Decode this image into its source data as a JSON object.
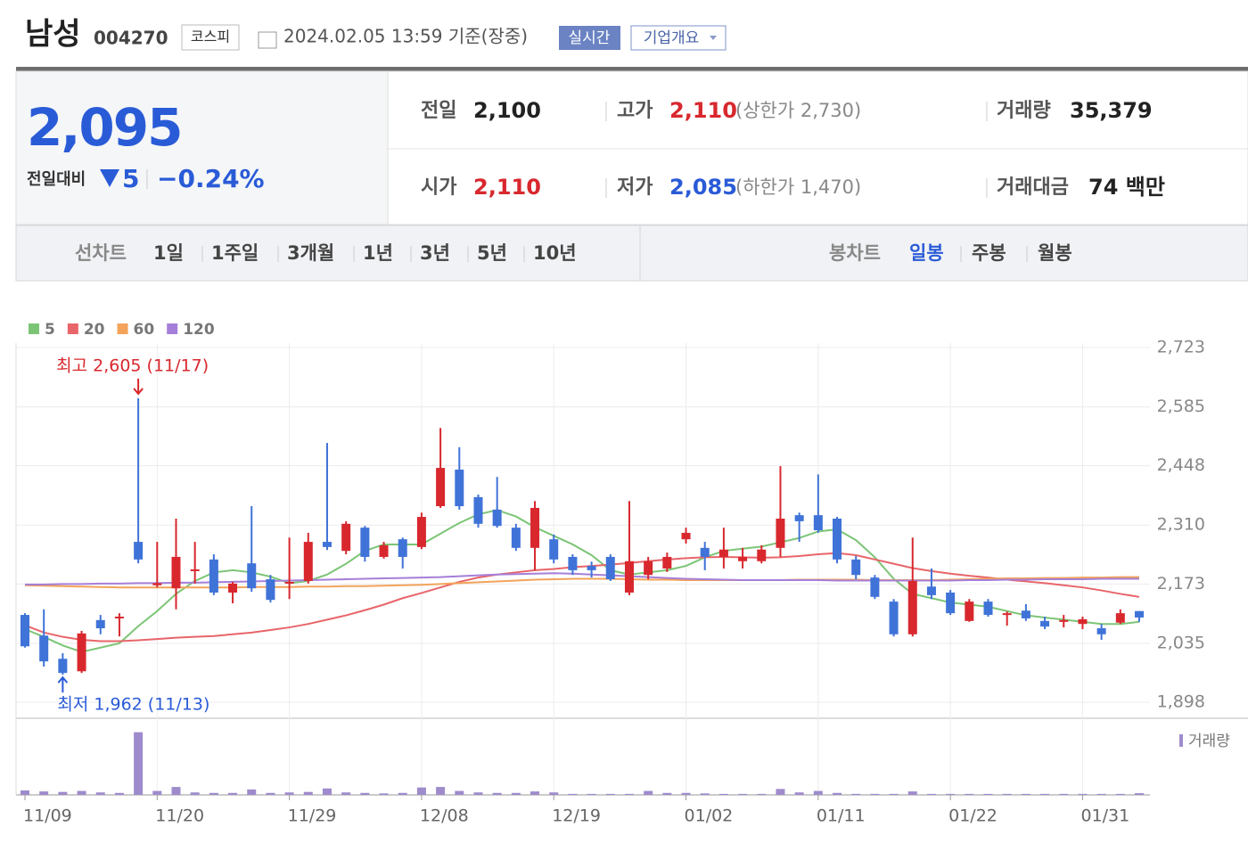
{
  "header": {
    "name": "남성",
    "code": "004270",
    "market": "코스피",
    "time": "2024.02.05 13:59 기준(장중)",
    "realtime": "실시간",
    "overview": "기업개요"
  },
  "price": {
    "current": "2,095",
    "change_label": "전일대비",
    "change": "5",
    "change_rate": "−0.24%"
  },
  "quote": {
    "prev": {
      "label": "전일",
      "value": "2,100"
    },
    "high": {
      "label": "고가",
      "value": "2,110",
      "note": "(상한가 2,730)"
    },
    "volume": {
      "label": "거래량",
      "value": "35,379"
    },
    "open": {
      "label": "시가",
      "value": "2,110"
    },
    "low": {
      "label": "저가",
      "value": "2,085",
      "note": "(하한가 1,470)"
    },
    "amount": {
      "label": "거래대금",
      "value": "74 백만"
    }
  },
  "tabs": {
    "line_label": "선차트",
    "line": [
      "1일",
      "1주일",
      "3개월",
      "1년",
      "3년",
      "5년",
      "10년"
    ],
    "candle_label": "봉차트",
    "candle": [
      "일봉",
      "주봉",
      "월봉"
    ]
  },
  "chart_data": {
    "type": "candlestick",
    "categories": [
      "11/09",
      null,
      null,
      null,
      null,
      null,
      null,
      "11/20",
      null,
      null,
      null,
      null,
      null,
      null,
      "11/29",
      null,
      null,
      null,
      null,
      null,
      null,
      "12/08",
      null,
      null,
      null,
      null,
      null,
      null,
      "12/19",
      null,
      null,
      null,
      null,
      null,
      null,
      "01/02",
      null,
      null,
      null,
      null,
      null,
      null,
      "01/11",
      null,
      null,
      null,
      null,
      null,
      null,
      "01/22",
      null,
      null,
      null,
      null,
      null,
      null,
      "01/31",
      null,
      null,
      null
    ],
    "open": [
      2101,
      2053,
      1999,
      1970,
      2089,
      2093,
      2271,
      2170,
      2163,
      2203,
      2230,
      2153,
      2221,
      2184,
      2174,
      2180,
      2271,
      2250,
      2304,
      2236,
      2277,
      2259,
      2354,
      2439,
      2375,
      2346,
      2304,
      2257,
      2277,
      2236,
      2215,
      2236,
      2153,
      2194,
      2209,
      2277,
      2257,
      2236,
      2226,
      2226,
      2257,
      2333,
      2333,
      2325,
      2230,
      2188,
      2132,
      2056,
      2167,
      2153,
      2087,
      2132,
      2101,
      2111,
      2087,
      2085,
      2080,
      2070,
      2083,
      2110
    ],
    "high": [
      2105,
      2114,
      2012,
      2064,
      2101,
      2105,
      2605,
      2271,
      2325,
      2271,
      2242,
      2178,
      2354,
      2194,
      2281,
      2292,
      2501,
      2319,
      2308,
      2271,
      2281,
      2339,
      2536,
      2491,
      2381,
      2422,
      2313,
      2366,
      2288,
      2242,
      2225,
      2242,
      2366,
      2236,
      2246,
      2304,
      2271,
      2304,
      2257,
      2263,
      2447,
      2339,
      2428,
      2329,
      2238,
      2194,
      2138,
      2281,
      2209,
      2159,
      2138,
      2138,
      2109,
      2126,
      2097,
      2101,
      2097,
      2080,
      2114,
      2110
    ],
    "low": [
      2025,
      1981,
      1962,
      1966,
      2056,
      2051,
      2221,
      2165,
      2114,
      2174,
      2147,
      2128,
      2155,
      2130,
      2138,
      2174,
      2252,
      2242,
      2225,
      2232,
      2209,
      2254,
      2350,
      2346,
      2304,
      2304,
      2250,
      2205,
      2221,
      2194,
      2188,
      2180,
      2147,
      2184,
      2201,
      2267,
      2205,
      2209,
      2209,
      2221,
      2236,
      2271,
      2292,
      2221,
      2184,
      2138,
      2051,
      2051,
      2138,
      2101,
      2085,
      2097,
      2076,
      2087,
      2068,
      2072,
      2068,
      2043,
      2080,
      2085
    ],
    "close": [
      2028,
      1993,
      1966,
      2058,
      2070,
      2097,
      2230,
      2175,
      2236,
      2207,
      2153,
      2174,
      2163,
      2136,
      2178,
      2271,
      2259,
      2313,
      2236,
      2263,
      2236,
      2329,
      2443,
      2354,
      2313,
      2308,
      2257,
      2350,
      2230,
      2205,
      2205,
      2184,
      2226,
      2226,
      2236,
      2292,
      2236,
      2253,
      2236,
      2253,
      2325,
      2319,
      2298,
      2230,
      2194,
      2143,
      2056,
      2180,
      2147,
      2105,
      2132,
      2101,
      2105,
      2093,
      2074,
      2089,
      2091,
      2056,
      2105,
      2095
    ],
    "up_color": "#d8282e",
    "down_color": "#3f73d8",
    "ylim": [
      1898,
      2723
    ],
    "yticks": [
      {
        "value": 1898,
        "label": "1,898"
      },
      {
        "value": 2035,
        "label": "2,035"
      },
      {
        "value": 2173,
        "label": "2,173"
      },
      {
        "value": 2310,
        "label": "2,310"
      },
      {
        "value": 2448,
        "label": "2,448"
      },
      {
        "value": 2585,
        "label": "2,585"
      },
      {
        "value": 2723,
        "label": "2,723"
      }
    ],
    "grid": true,
    "series": [
      {
        "name": "5",
        "color": "#7cc576",
        "values": [
          2068,
          2050,
          2030,
          2015,
          2025,
          2035,
          2075,
          2110,
          2150,
          2180,
          2200,
          2205,
          2200,
          2190,
          2175,
          2180,
          2195,
          2220,
          2250,
          2265,
          2265,
          2265,
          2290,
          2315,
          2335,
          2345,
          2330,
          2305,
          2285,
          2265,
          2240,
          2205,
          2195,
          2200,
          2205,
          2215,
          2235,
          2250,
          2255,
          2260,
          2270,
          2280,
          2295,
          2300,
          2275,
          2235,
          2185,
          2150,
          2140,
          2130,
          2125,
          2120,
          2110,
          2100,
          2095,
          2090,
          2085,
          2080,
          2080,
          2085
        ]
      },
      {
        "name": "20",
        "color": "#e8656a",
        "values": [
          2077,
          2060,
          2050,
          2043,
          2040,
          2040,
          2042,
          2045,
          2048,
          2050,
          2052,
          2056,
          2060,
          2066,
          2072,
          2080,
          2090,
          2100,
          2112,
          2125,
          2140,
          2152,
          2165,
          2178,
          2188,
          2195,
          2200,
          2205,
          2208,
          2212,
          2215,
          2218,
          2222,
          2226,
          2230,
          2233,
          2235,
          2236,
          2235,
          2234,
          2235,
          2238,
          2242,
          2245,
          2240,
          2230,
          2220,
          2210,
          2203,
          2197,
          2192,
          2188,
          2183,
          2179,
          2175,
          2170,
          2165,
          2158,
          2150,
          2143
        ]
      },
      {
        "name": "60",
        "color": "#f3a35a",
        "values": [
          2170,
          2169,
          2168,
          2167,
          2166,
          2165,
          2165,
          2165,
          2165,
          2165,
          2165,
          2165,
          2166,
          2166,
          2166,
          2167,
          2167,
          2168,
          2168,
          2169,
          2170,
          2171,
          2173,
          2175,
          2177,
          2179,
          2181,
          2183,
          2184,
          2185,
          2185,
          2185,
          2184,
          2183,
          2183,
          2182,
          2182,
          2182,
          2182,
          2182,
          2182,
          2183,
          2183,
          2183,
          2183,
          2182,
          2182,
          2182,
          2182,
          2183,
          2184,
          2185,
          2186,
          2186,
          2187,
          2187,
          2188,
          2188,
          2189,
          2189
        ]
      },
      {
        "name": "120",
        "color": "#a57fd9",
        "values": [
          2172,
          2172,
          2173,
          2173,
          2174,
          2174,
          2175,
          2175,
          2176,
          2176,
          2177,
          2178,
          2179,
          2180,
          2181,
          2182,
          2183,
          2184,
          2185,
          2186,
          2187,
          2188,
          2189,
          2191,
          2193,
          2195,
          2196,
          2197,
          2198,
          2197,
          2195,
          2193,
          2191,
          2189,
          2187,
          2185,
          2184,
          2183,
          2182,
          2182,
          2182,
          2182,
          2182,
          2181,
          2181,
          2181,
          2181,
          2181,
          2181,
          2181,
          2182,
          2182,
          2183,
          2183,
          2184,
          2184,
          2184,
          2185,
          2185,
          2185
        ]
      }
    ],
    "volume": {
      "name": "거래량",
      "color": "#9e8bcc",
      "ylim": [
        0,
        1300000
      ],
      "values": [
        90000,
        70000,
        60000,
        80000,
        50000,
        40000,
        1270000,
        80000,
        160000,
        50000,
        40000,
        40000,
        110000,
        40000,
        50000,
        60000,
        130000,
        50000,
        40000,
        30000,
        40000,
        150000,
        160000,
        80000,
        50000,
        40000,
        40000,
        70000,
        50000,
        20000,
        20000,
        20000,
        20000,
        80000,
        40000,
        40000,
        30000,
        20000,
        20000,
        20000,
        120000,
        50000,
        80000,
        40000,
        20000,
        20000,
        20000,
        70000,
        20000,
        20000,
        20000,
        20000,
        20000,
        20000,
        20000,
        20000,
        20000,
        20000,
        20000,
        35379
      ]
    },
    "high_label": "최고 2,605 (11/17)",
    "low_label": "최저 1,962 (11/13)"
  }
}
